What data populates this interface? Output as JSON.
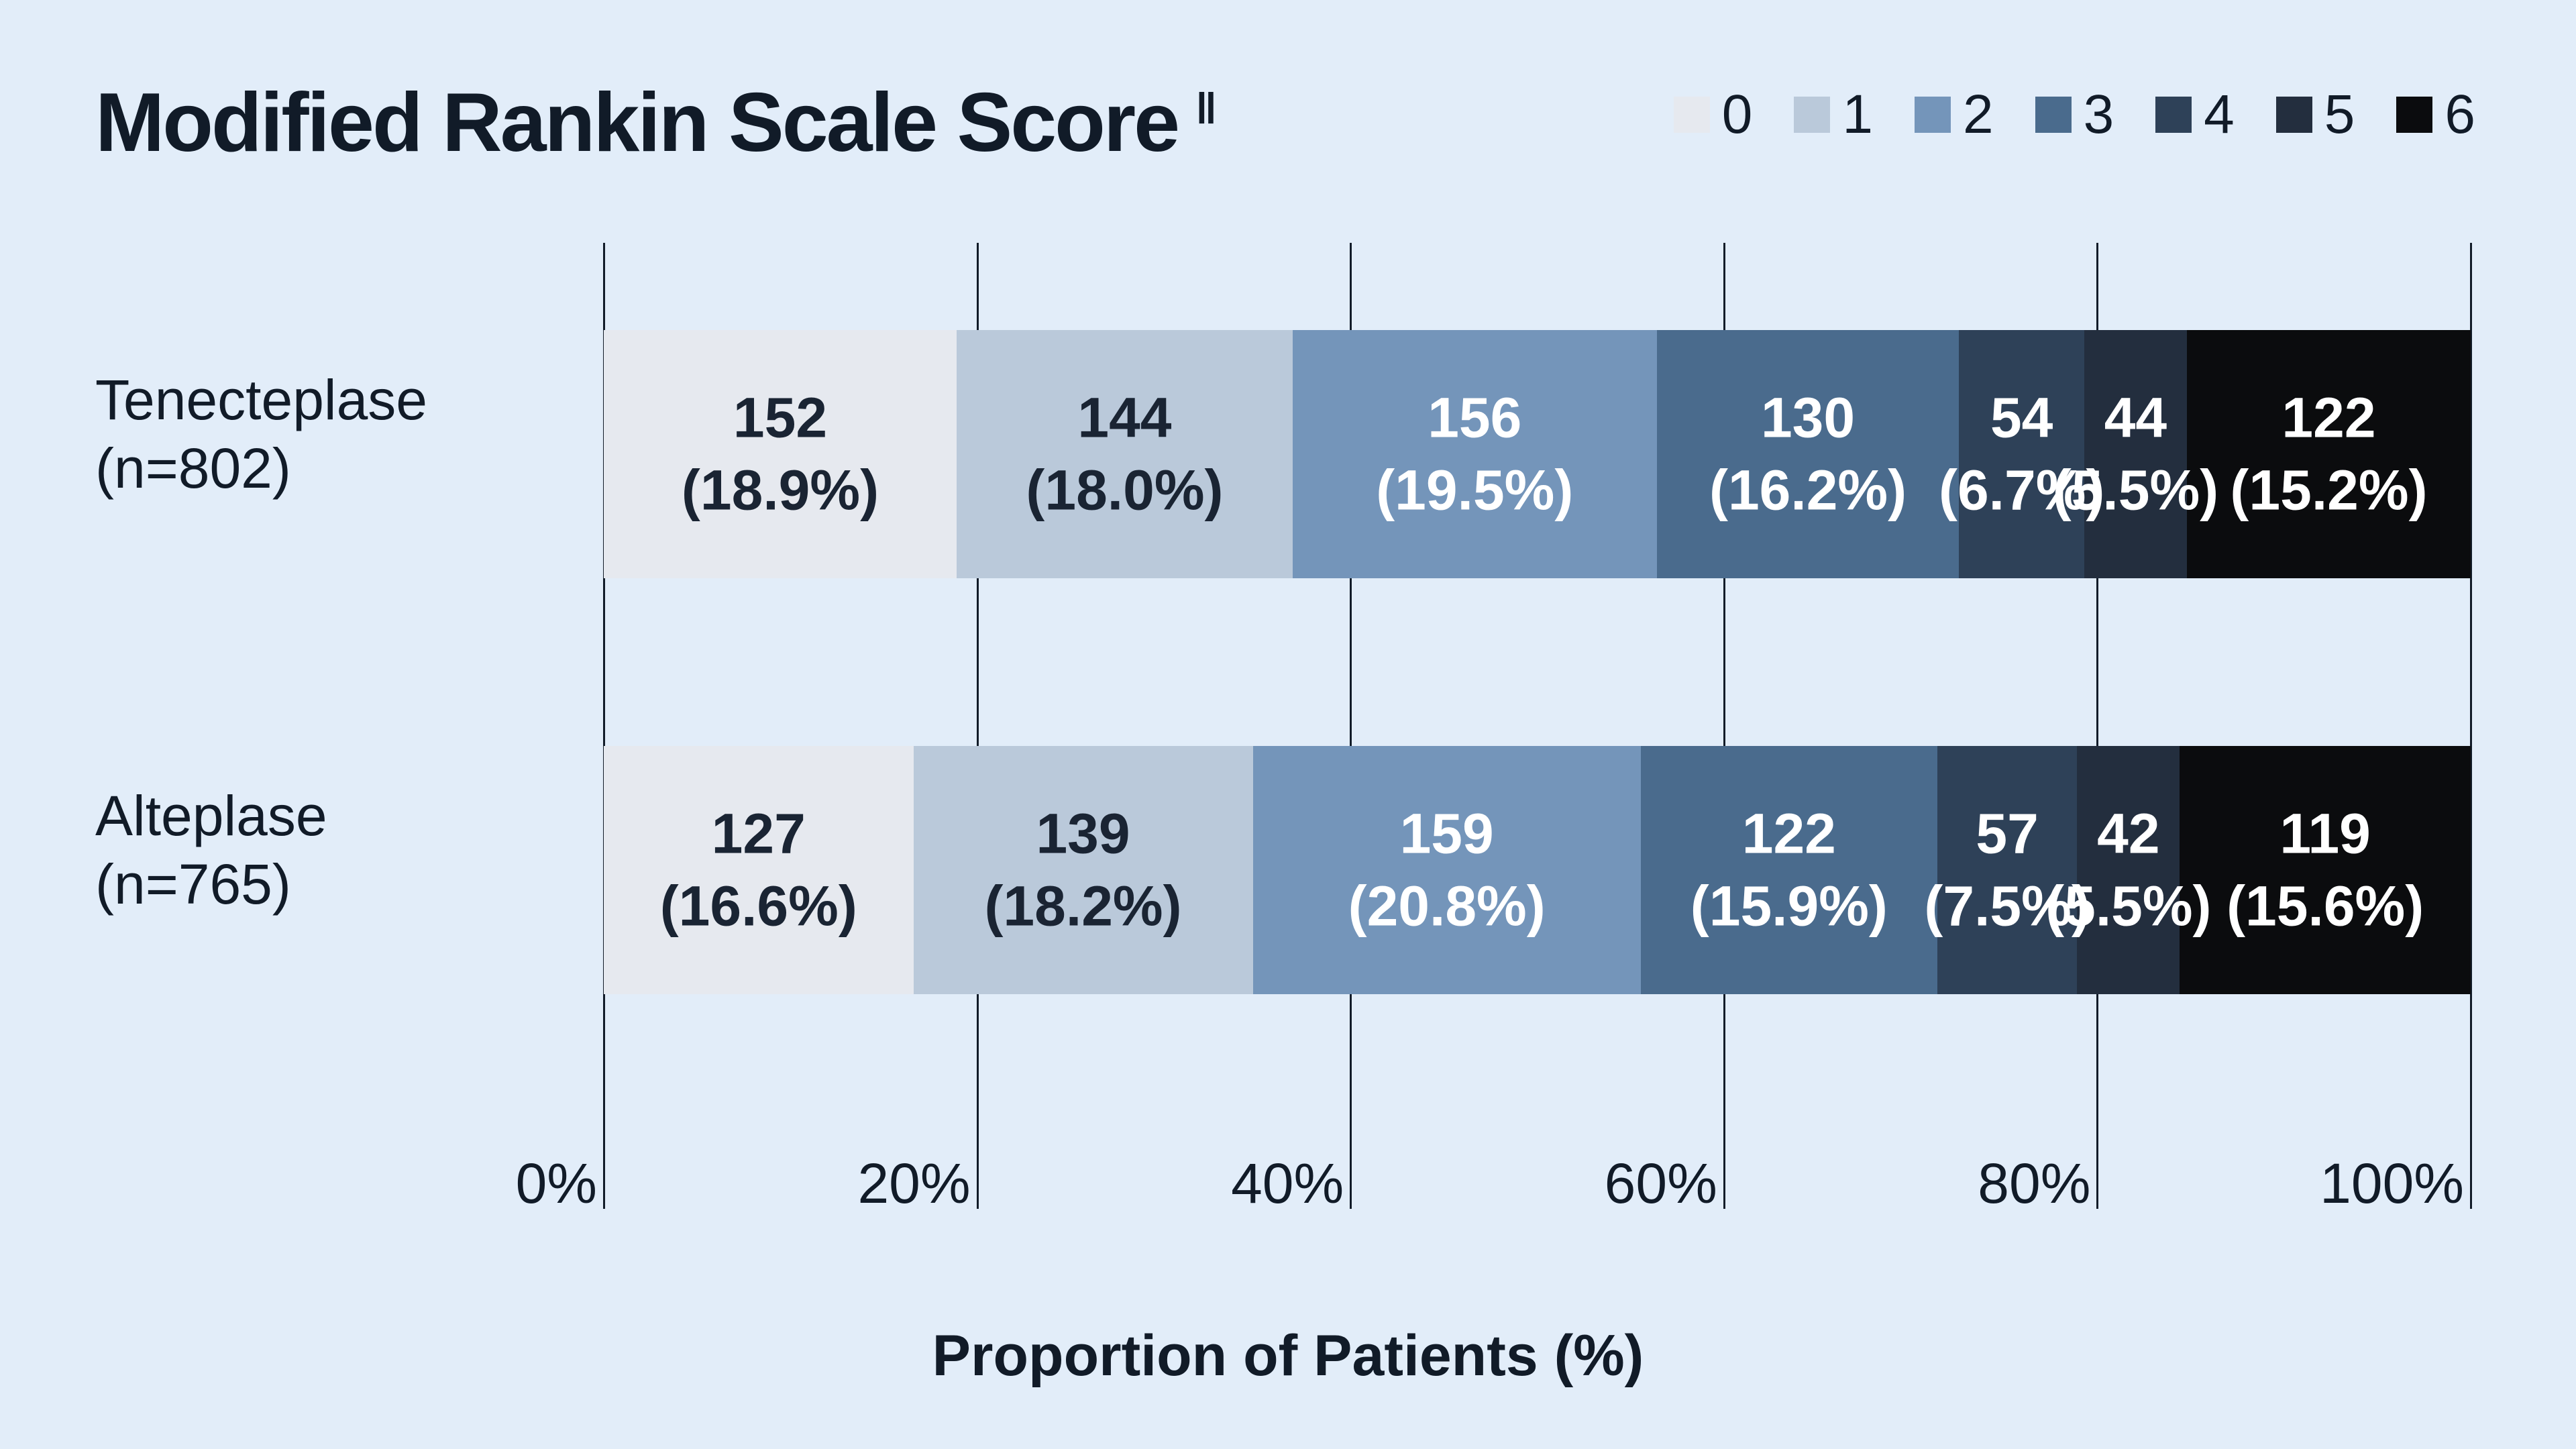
{
  "title": {
    "text": "Modified Rankin Scale Score",
    "footnote_mark": "‖"
  },
  "x_axis": {
    "label": "Proportion of Patients (%)",
    "ticks": [
      "0%",
      "20%",
      "40%",
      "60%",
      "80%",
      "100%"
    ]
  },
  "legend": {
    "labels": [
      "0",
      "1",
      "2",
      "3",
      "4",
      "5",
      "6"
    ]
  },
  "colors": {
    "background": "#e2edf9",
    "text": "#111b28",
    "gridline": "#121c29",
    "series": [
      "#e6e9ef",
      "#bac9da",
      "#7495ba",
      "#4a6b8d",
      "#2e4158",
      "#232e3e",
      "#0b0c0e"
    ],
    "segment_label_colors": [
      "#1a2433",
      "#1a2433",
      "#ffffff",
      "#ffffff",
      "#ffffff",
      "#ffffff",
      "#ffffff"
    ]
  },
  "chart_data": {
    "type": "bar",
    "variant": "horizontal_stacked_100pct",
    "title": "Modified Rankin Scale Score",
    "xlabel": "Proportion of Patients (%)",
    "xlim": [
      0,
      100
    ],
    "x_ticks_pct": [
      0,
      20,
      40,
      60,
      80,
      100
    ],
    "grid": "vertical",
    "legend_position": "top-right",
    "categories": [
      "0",
      "1",
      "2",
      "3",
      "4",
      "5",
      "6"
    ],
    "rows": [
      {
        "label": "Tenecteplase",
        "sublabel": "(n=802)",
        "n": 802,
        "segments": [
          {
            "score": "0",
            "count": "152",
            "pct": "18.9"
          },
          {
            "score": "1",
            "count": "144",
            "pct": "18.0"
          },
          {
            "score": "2",
            "count": "156",
            "pct": "19.5"
          },
          {
            "score": "3",
            "count": "130",
            "pct": "16.2"
          },
          {
            "score": "4",
            "count": "54",
            "pct": "6.7"
          },
          {
            "score": "5",
            "count": "44",
            "pct": "5.5"
          },
          {
            "score": "6",
            "count": "122",
            "pct": "15.2"
          }
        ]
      },
      {
        "label": "Alteplase",
        "sublabel": "(n=765)",
        "n": 765,
        "segments": [
          {
            "score": "0",
            "count": "127",
            "pct": "16.6"
          },
          {
            "score": "1",
            "count": "139",
            "pct": "18.2"
          },
          {
            "score": "2",
            "count": "159",
            "pct": "20.8"
          },
          {
            "score": "3",
            "count": "122",
            "pct": "15.9"
          },
          {
            "score": "4",
            "count": "57",
            "pct": "7.5"
          },
          {
            "score": "5",
            "count": "42",
            "pct": "5.5"
          },
          {
            "score": "6",
            "count": "119",
            "pct": "15.6"
          }
        ]
      }
    ]
  }
}
